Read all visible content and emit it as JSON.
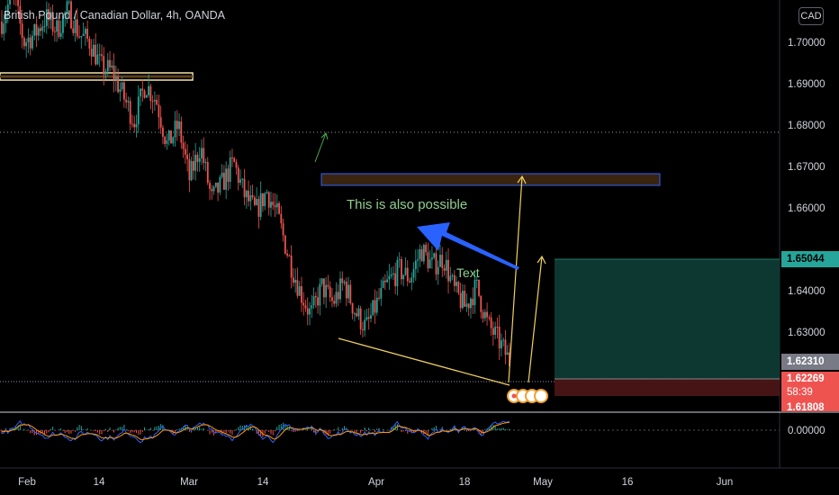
{
  "header": {
    "symbol_title": "British Pound / Canadian Dollar, 4h, OANDA",
    "currency_button": "CAD"
  },
  "price_axis": {
    "ticks": [
      "1.70000",
      "1.69000",
      "1.68000",
      "1.67000",
      "1.66000",
      "1.64000",
      "1.63000"
    ],
    "target_price": "1.65044",
    "last_price_a": "1.62310",
    "last_price_b": "1.62269",
    "countdown": "58:39",
    "stop_price": "1.61808",
    "oscillator_zero": "0.00000"
  },
  "time_axis": {
    "labels": [
      "Feb",
      "14",
      "Mar",
      "14",
      "Apr",
      "18",
      "May",
      "16",
      "Jun"
    ]
  },
  "annotations": {
    "possible_text": "This is also possible",
    "text_label": "Text"
  },
  "colors": {
    "up": "#26a69a",
    "down": "#ef5350",
    "target_zone": "#0e3b34",
    "stop_zone": "#4a1515",
    "arrow_blue": "#2962ff",
    "yellow": "#f0d060",
    "annotation_green": "#8fcf8f"
  },
  "chart_data": {
    "type": "candlestick",
    "title": "British Pound / Canadian Dollar, 4h, OANDA",
    "ylim": [
      1.618,
      1.712
    ],
    "y_ticks": [
      1.63,
      1.64,
      1.66,
      1.67,
      1.68,
      1.69,
      1.7
    ],
    "x_ticks": [
      "Feb",
      "14",
      "Mar",
      "14",
      "Apr",
      "18",
      "May",
      "16",
      "Jun"
    ],
    "price_path": [
      1.705,
      1.712,
      1.7,
      1.702,
      1.706,
      1.703,
      1.708,
      1.702,
      1.7,
      1.694,
      1.693,
      1.687,
      1.681,
      1.69,
      1.686,
      1.675,
      1.68,
      1.667,
      1.675,
      1.662,
      1.666,
      1.671,
      1.663,
      1.659,
      1.664,
      1.658,
      1.648,
      1.64,
      1.634,
      1.641,
      1.637,
      1.642,
      1.635,
      1.631,
      1.637,
      1.642,
      1.645,
      1.643,
      1.65,
      1.646,
      1.648,
      1.64,
      1.636,
      1.641,
      1.632,
      1.628,
      1.623
    ],
    "levels": {
      "resistance_box": [
        1.668,
        1.6695
      ],
      "old_resistance": [
        1.691,
        1.6925
      ],
      "dotted_level_high": 1.68,
      "target": 1.65044,
      "entry": 1.6231,
      "stop": 1.61808
    },
    "oscillator": {
      "zero_line": 0.0
    }
  }
}
